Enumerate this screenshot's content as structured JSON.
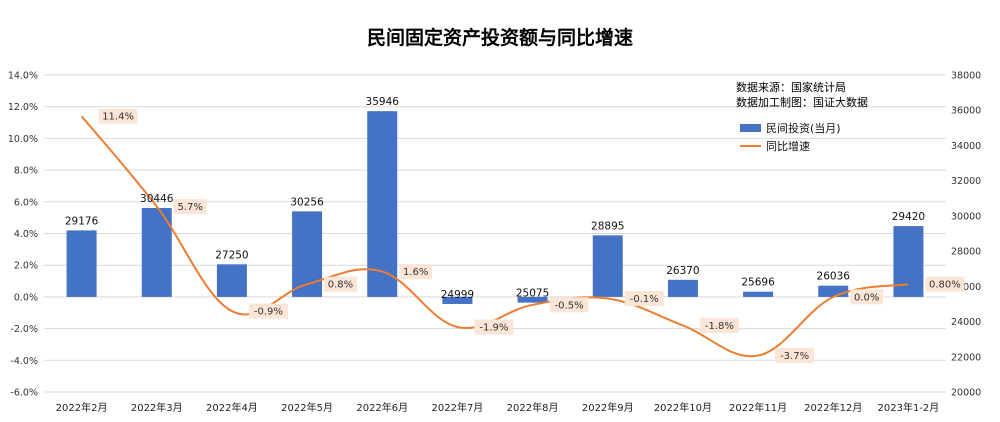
{
  "chart_data": {
    "type": "bar",
    "title": "民间固定资产投资额与同比增速",
    "source_lines": [
      "数据来源：国家统计局",
      "数据加工制图：国证大数据"
    ],
    "categories": [
      "2022年2月",
      "2022年3月",
      "2022年4月",
      "2022年5月",
      "2022年6月",
      "2022年7月",
      "2022年8月",
      "2022年9月",
      "2022年10月",
      "2022年11月",
      "2022年12月",
      "2023年1-2月"
    ],
    "series": [
      {
        "name": "民间投资(当月)",
        "type": "bar",
        "axis": "right",
        "color": "#4472c4",
        "values": [
          29176,
          30446,
          27250,
          30256,
          35946,
          24999,
          25075,
          28895,
          26370,
          25696,
          26036,
          29420
        ],
        "labels": [
          "29176",
          "30446",
          "27250",
          "30256",
          "35946",
          "24999",
          "25075",
          "28895",
          "26370",
          "25696",
          "26036",
          "29420"
        ]
      },
      {
        "name": "同比增速",
        "type": "line",
        "axis": "left",
        "color": "#ed7d31",
        "smooth": true,
        "values": [
          11.4,
          5.7,
          -0.9,
          0.8,
          1.6,
          -1.9,
          -0.5,
          -0.1,
          -1.8,
          -3.7,
          0.0,
          0.8
        ],
        "labels": [
          "11.4%",
          "5.7%",
          "-0.9%",
          "0.8%",
          "1.6%",
          "-1.9%",
          "-0.5%",
          "-0.1%",
          "-1.8%",
          "-3.7%",
          "0.0%",
          "0.80%"
        ]
      }
    ],
    "y_left": {
      "min": -6,
      "max": 14,
      "step": 2,
      "tick_labels": [
        "-6.0%",
        "-4.0%",
        "-2.0%",
        "0.0%",
        "2.0%",
        "4.0%",
        "6.0%",
        "8.0%",
        "10.0%",
        "12.0%",
        "14.0%"
      ]
    },
    "y_right": {
      "min": 20000,
      "max": 38000,
      "step": 2000,
      "tick_labels": [
        "20000",
        "22000",
        "24000",
        "26000",
        "28000",
        "30000",
        "32000",
        "34000",
        "36000",
        "38000"
      ]
    },
    "grid": true,
    "legend_position": "top-right",
    "label_box_color": "#fbe5d6"
  }
}
